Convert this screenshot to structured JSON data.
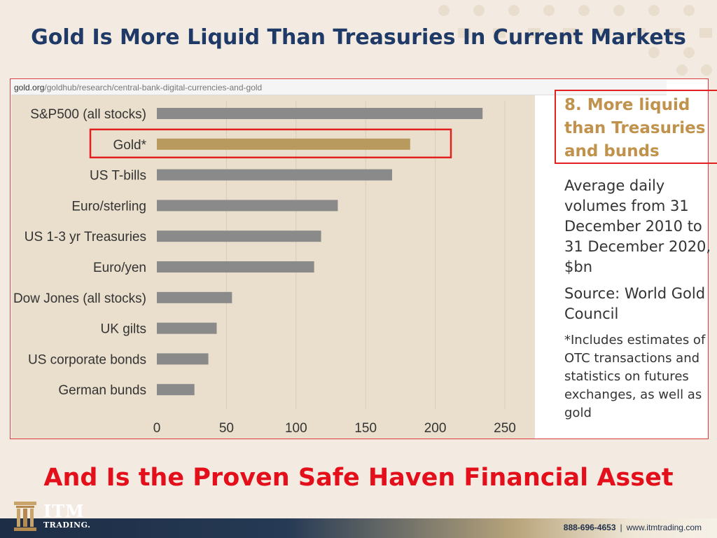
{
  "header": {
    "title": "Gold Is More Liquid Than Treasuries In Current Markets"
  },
  "url": {
    "domain": "gold.org",
    "path": "/goldhub/research/central-bank-digital-currencies-and-gold"
  },
  "callout": {
    "lines": [
      "8. More liquid",
      "than Treasuries",
      "and bunds"
    ]
  },
  "notes": {
    "description": "Average daily volumes from 31 December 2010 to 31 December 2020, $bn",
    "source": "Source: World Gold Council",
    "footnote": "*Includes estimates of OTC transactions and statistics on futures exchanges, as well as gold"
  },
  "subtitle": "And Is the Proven Safe Haven Financial Asset",
  "brand": {
    "logo_big": "ITM",
    "logo_small": "TRADING."
  },
  "footer": {
    "phone": "888-696-4653",
    "separator": "|",
    "website": "www.itmtrading.com"
  },
  "colors": {
    "title": "#1f3a66",
    "subtitle": "#e3101b",
    "bar_default": "#8a8a8b",
    "bar_highlight": "#b99a5e",
    "chart_bg": "#eadfcc",
    "highlight_box": "#e32020"
  },
  "icons": [
    "itm-column-logo-icon"
  ],
  "chart_data": {
    "type": "bar",
    "orientation": "horizontal",
    "categories": [
      "S&P500 (all stocks)",
      "Gold*",
      "US T-bills",
      "Euro/sterling",
      "US 1-3 yr Treasuries",
      "Euro/yen",
      "Dow Jones (all stocks)",
      "UK gilts",
      "US corporate bonds",
      "German bunds"
    ],
    "values": [
      234,
      182,
      169,
      130,
      118,
      113,
      54,
      43,
      37,
      27
    ],
    "highlight": "Gold*",
    "xlim": [
      0,
      250
    ],
    "xticks": [
      "0",
      "50",
      "100",
      "150",
      "200",
      "250"
    ],
    "grid": "vertical",
    "xlabel": "",
    "ylabel": ""
  }
}
